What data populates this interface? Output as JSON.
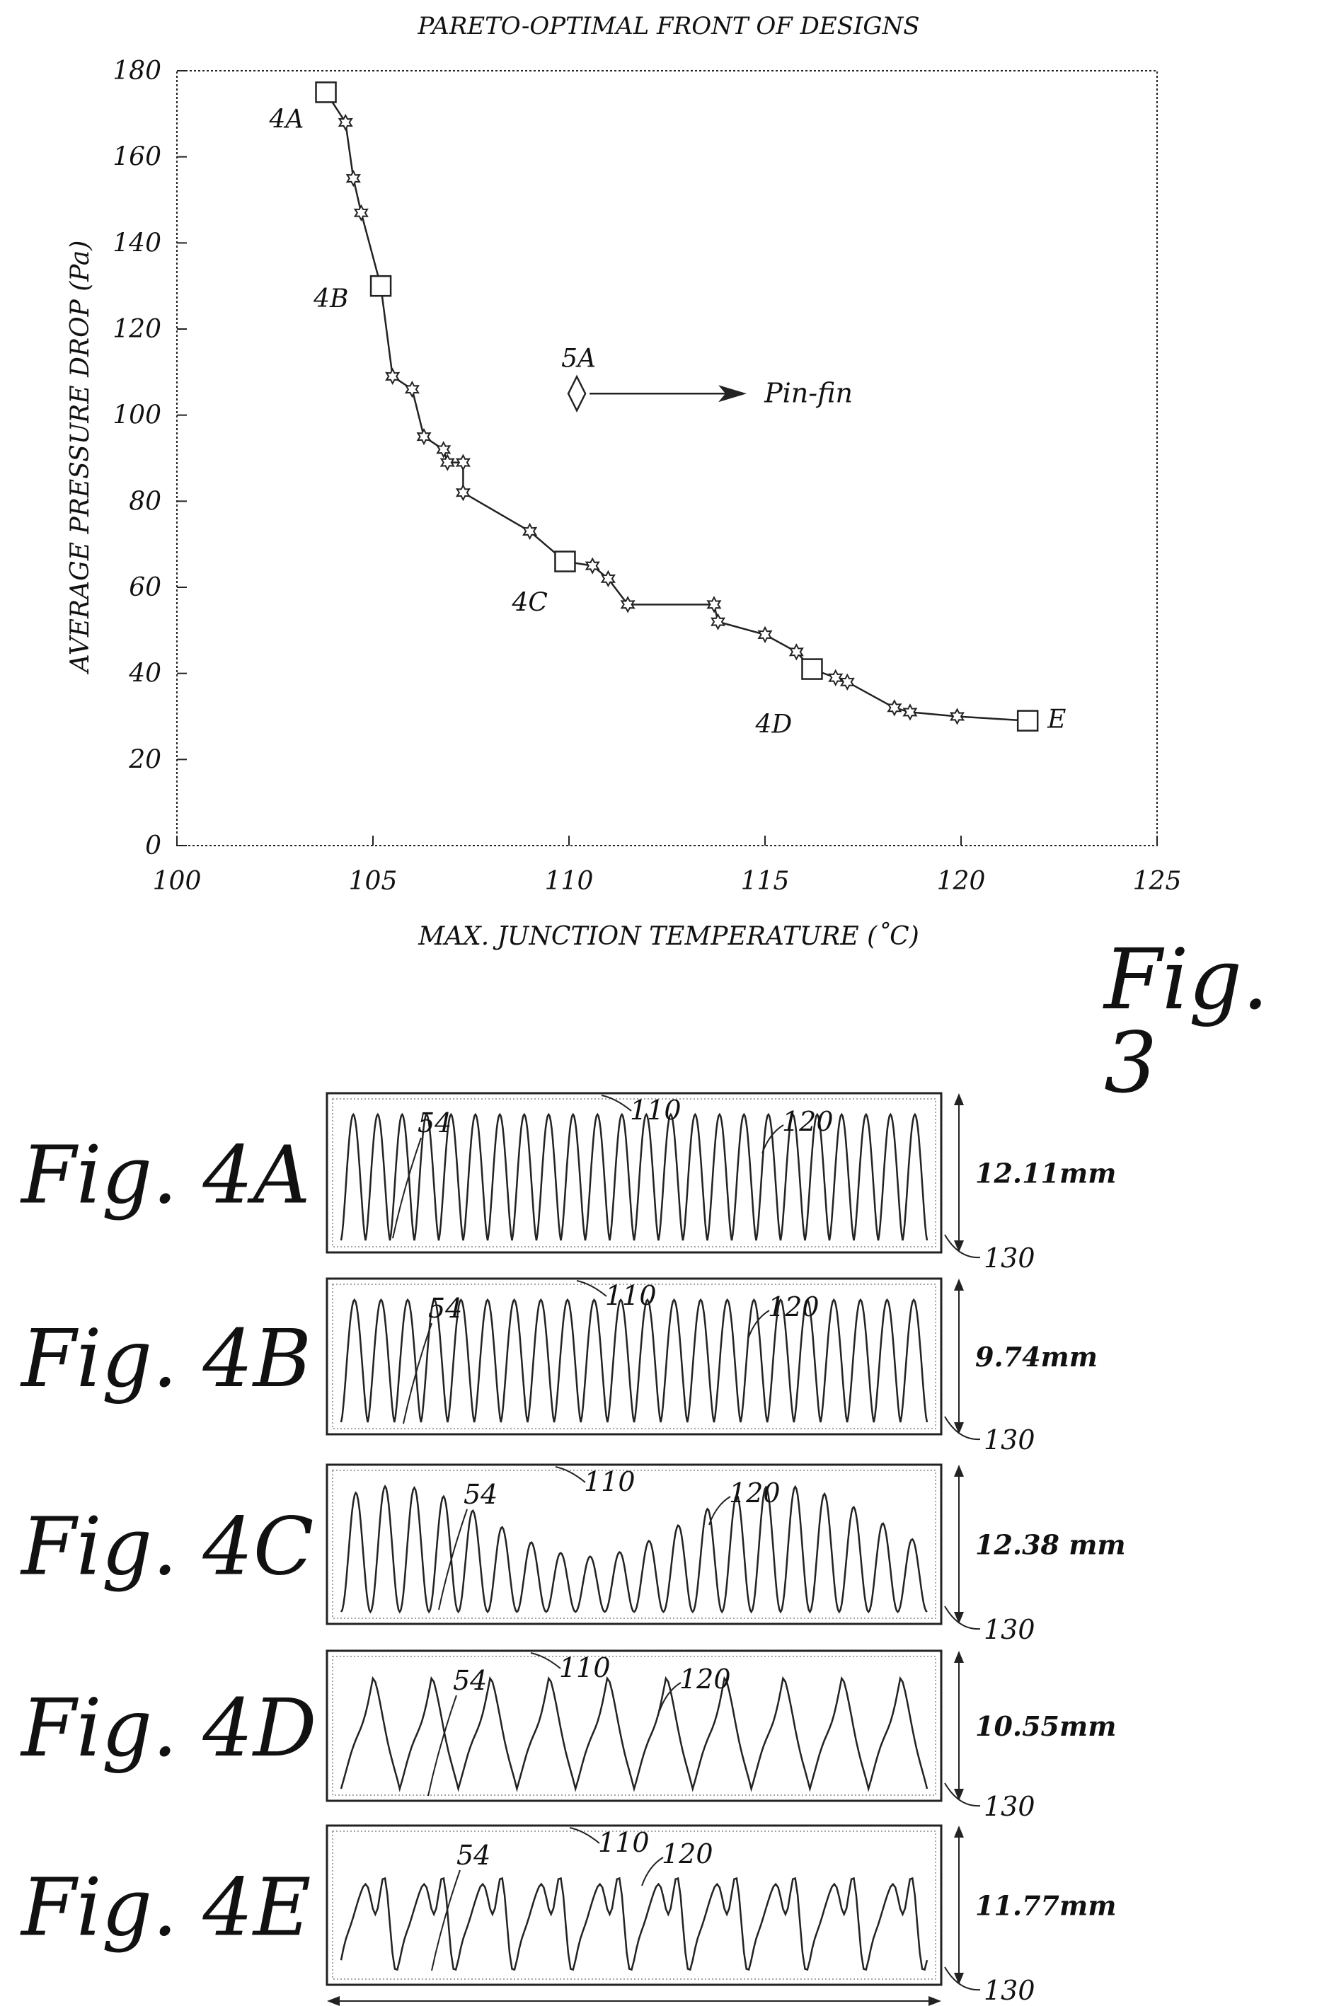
{
  "fig3": {
    "label": "Fig. 3",
    "chart_data": {
      "type": "scatter",
      "title": "PARETO-OPTIMAL FRONT OF DESIGNS",
      "xlabel": "MAX. JUNCTION TEMPERATURE (˚C)",
      "ylabel": "AVERAGE PRESSURE DROP (Pa)",
      "xlim": [
        100,
        125
      ],
      "ylim": [
        0,
        180
      ],
      "xticks": [
        "100",
        "105",
        "110",
        "115",
        "120",
        "125"
      ],
      "yticks": [
        "0",
        "20",
        "40",
        "60",
        "80",
        "100",
        "120",
        "140",
        "160",
        "180"
      ],
      "series": [
        {
          "points": [
            [
              103.8,
              175
            ],
            [
              104.3,
              168
            ],
            [
              104.5,
              155
            ],
            [
              104.7,
              147
            ],
            [
              105.2,
              130
            ],
            [
              105.5,
              109
            ],
            [
              106.0,
              106
            ],
            [
              106.3,
              95
            ],
            [
              106.8,
              92
            ],
            [
              106.9,
              89
            ],
            [
              107.3,
              89
            ],
            [
              107.3,
              82
            ],
            [
              109.0,
              73
            ],
            [
              109.9,
              66
            ],
            [
              110.6,
              65
            ],
            [
              111.0,
              62
            ],
            [
              111.5,
              56
            ],
            [
              113.7,
              56
            ],
            [
              113.8,
              52
            ],
            [
              115.0,
              49
            ],
            [
              115.8,
              45
            ],
            [
              116.2,
              41
            ],
            [
              116.8,
              39
            ],
            [
              117.1,
              38
            ],
            [
              118.3,
              32
            ],
            [
              118.7,
              31
            ],
            [
              119.9,
              30
            ],
            [
              121.7,
              29
            ]
          ]
        }
      ],
      "labeled_designs": [
        {
          "label": "4A",
          "x": 103.8,
          "y": 175
        },
        {
          "label": "4B",
          "x": 105.2,
          "y": 130
        },
        {
          "label": "4C",
          "x": 109.9,
          "y": 66
        },
        {
          "label": "4D",
          "x": 116.2,
          "y": 41
        },
        {
          "label": "E",
          "x": 121.7,
          "y": 29
        }
      ],
      "reference_point": {
        "label": "5A",
        "x": 110.2,
        "y": 105,
        "annotation": "Pin-fin"
      }
    }
  },
  "fig4": {
    "panels": [
      {
        "label": "Fig. 4A",
        "dimension": "12.11mm",
        "ref_54": "54",
        "ref_110": "110",
        "ref_120": "120",
        "ref_130": "130"
      },
      {
        "label": "Fig. 4B",
        "dimension": "9.74mm",
        "ref_54": "54",
        "ref_110": "110",
        "ref_120": "120",
        "ref_130": "130"
      },
      {
        "label": "Fig. 4C",
        "dimension": "12.38 mm",
        "ref_54": "54",
        "ref_110": "110",
        "ref_120": "120",
        "ref_130": "130"
      },
      {
        "label": "Fig. 4D",
        "dimension": "10.55mm",
        "ref_54": "54",
        "ref_110": "110",
        "ref_120": "120",
        "ref_130": "130"
      },
      {
        "label": "Fig. 4E",
        "dimension": "11.77mm",
        "ref_54": "54",
        "ref_110": "110",
        "ref_120": "120",
        "ref_130": "130"
      }
    ]
  }
}
